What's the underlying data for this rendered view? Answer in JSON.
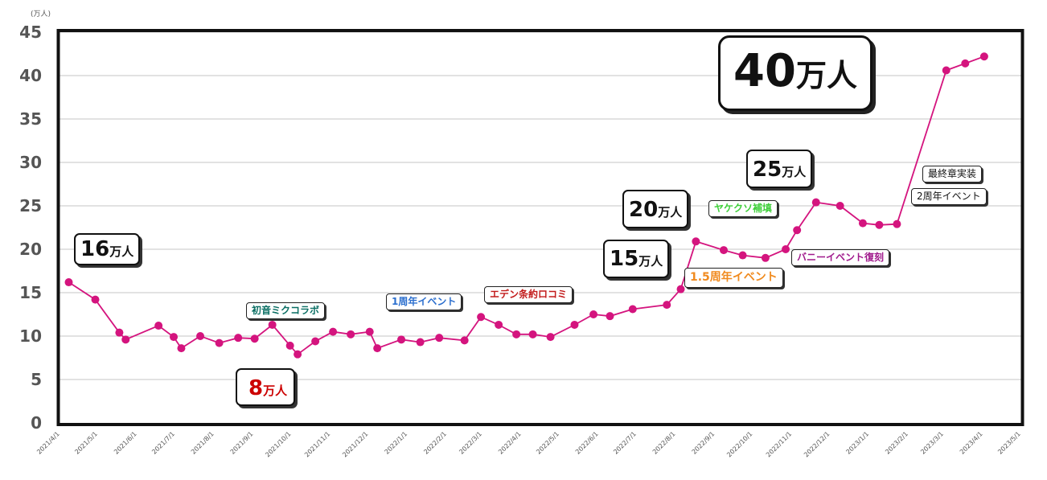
{
  "chart_data": {
    "type": "line",
    "unit_label": "(万人)",
    "ylim": [
      0,
      45
    ],
    "y_ticks": [
      "0",
      "5",
      "10",
      "15",
      "20",
      "25",
      "30",
      "35",
      "40",
      "45"
    ],
    "x_start": "2021-04-01",
    "x_end": "2023-05-01",
    "x_ticks": [
      "2021/4/1",
      "2021/5/1",
      "2021/6/1",
      "2021/7/1",
      "2021/8/1",
      "2021/9/1",
      "2021/10/1",
      "2021/11/1",
      "2021/12/1",
      "2022/1/1",
      "2022/2/1",
      "2022/3/1",
      "2022/4/1",
      "2022/5/1",
      "2022/6/1",
      "2022/7/1",
      "2022/8/1",
      "2022/9/1",
      "2022/10/1",
      "2022/11/1",
      "2022/12/1",
      "2023/1/1",
      "2023/2/1",
      "2023/3/1",
      "2023/4/1",
      "2023/5/1"
    ],
    "grid": true,
    "line_color": "#d4147e",
    "series": [
      {
        "points": [
          {
            "x": "2021-04-08",
            "y": 16.2
          },
          {
            "x": "2021-04-29",
            "y": 14.2
          },
          {
            "x": "2021-05-18",
            "y": 10.4
          },
          {
            "x": "2021-05-23",
            "y": 9.6
          },
          {
            "x": "2021-06-18",
            "y": 11.2
          },
          {
            "x": "2021-06-30",
            "y": 9.9
          },
          {
            "x": "2021-07-06",
            "y": 8.6
          },
          {
            "x": "2021-07-21",
            "y": 10.0
          },
          {
            "x": "2021-08-05",
            "y": 9.2
          },
          {
            "x": "2021-08-20",
            "y": 9.8
          },
          {
            "x": "2021-09-02",
            "y": 9.7
          },
          {
            "x": "2021-09-16",
            "y": 11.3
          },
          {
            "x": "2021-09-30",
            "y": 8.9
          },
          {
            "x": "2021-10-06",
            "y": 7.9
          },
          {
            "x": "2021-10-20",
            "y": 9.4
          },
          {
            "x": "2021-11-03",
            "y": 10.5
          },
          {
            "x": "2021-11-17",
            "y": 10.2
          },
          {
            "x": "2021-12-02",
            "y": 10.5
          },
          {
            "x": "2021-12-08",
            "y": 8.6
          },
          {
            "x": "2021-12-27",
            "y": 9.6
          },
          {
            "x": "2022-01-11",
            "y": 9.3
          },
          {
            "x": "2022-01-26",
            "y": 9.8
          },
          {
            "x": "2022-02-15",
            "y": 9.5
          },
          {
            "x": "2022-02-28",
            "y": 12.2
          },
          {
            "x": "2022-03-14",
            "y": 11.3
          },
          {
            "x": "2022-03-28",
            "y": 10.2
          },
          {
            "x": "2022-04-10",
            "y": 10.2
          },
          {
            "x": "2022-04-24",
            "y": 9.9
          },
          {
            "x": "2022-05-13",
            "y": 11.3
          },
          {
            "x": "2022-05-28",
            "y": 12.5
          },
          {
            "x": "2022-06-10",
            "y": 12.3
          },
          {
            "x": "2022-06-28",
            "y": 13.1
          },
          {
            "x": "2022-07-25",
            "y": 13.6
          },
          {
            "x": "2022-08-05",
            "y": 15.4
          },
          {
            "x": "2022-08-17",
            "y": 20.9
          },
          {
            "x": "2022-09-08",
            "y": 19.9
          },
          {
            "x": "2022-09-23",
            "y": 19.3
          },
          {
            "x": "2022-10-11",
            "y": 19.0
          },
          {
            "x": "2022-10-27",
            "y": 20.0
          },
          {
            "x": "2022-11-05",
            "y": 22.2
          },
          {
            "x": "2022-11-20",
            "y": 25.4
          },
          {
            "x": "2022-12-09",
            "y": 25.0
          },
          {
            "x": "2022-12-27",
            "y": 23.0
          },
          {
            "x": "2023-01-09",
            "y": 22.8
          },
          {
            "x": "2023-01-23",
            "y": 22.9
          },
          {
            "x": "2023-03-03",
            "y": 40.6
          },
          {
            "x": "2023-03-18",
            "y": 41.4
          },
          {
            "x": "2023-04-02",
            "y": 42.2
          }
        ]
      }
    ],
    "callouts": [
      {
        "num": "16",
        "unit": "万人"
      },
      {
        "num": "8",
        "unit": "万人"
      },
      {
        "num": "15",
        "unit": "万人"
      },
      {
        "num": "20",
        "unit": "万人"
      },
      {
        "num": "25",
        "unit": "万人"
      },
      {
        "num": "40",
        "unit": "万人"
      }
    ],
    "annotations": [
      {
        "text": "初音ミクコラボ",
        "color": "#0a6e63"
      },
      {
        "text": "1周年イベント",
        "color": "#2c6fce"
      },
      {
        "text": "エデン条約ロコミ",
        "color": "#c21b1b"
      },
      {
        "text": "1.5周年イベント",
        "color": "#f08a1e"
      },
      {
        "text": "ヤケクソ補填",
        "color": "#3fcf3a"
      },
      {
        "text": "バニーイベント復刻",
        "color": "#a01a8c"
      },
      {
        "text": "最終章実装",
        "color": "#111111"
      },
      {
        "text": "2周年イベント",
        "color": "#111111"
      }
    ]
  }
}
